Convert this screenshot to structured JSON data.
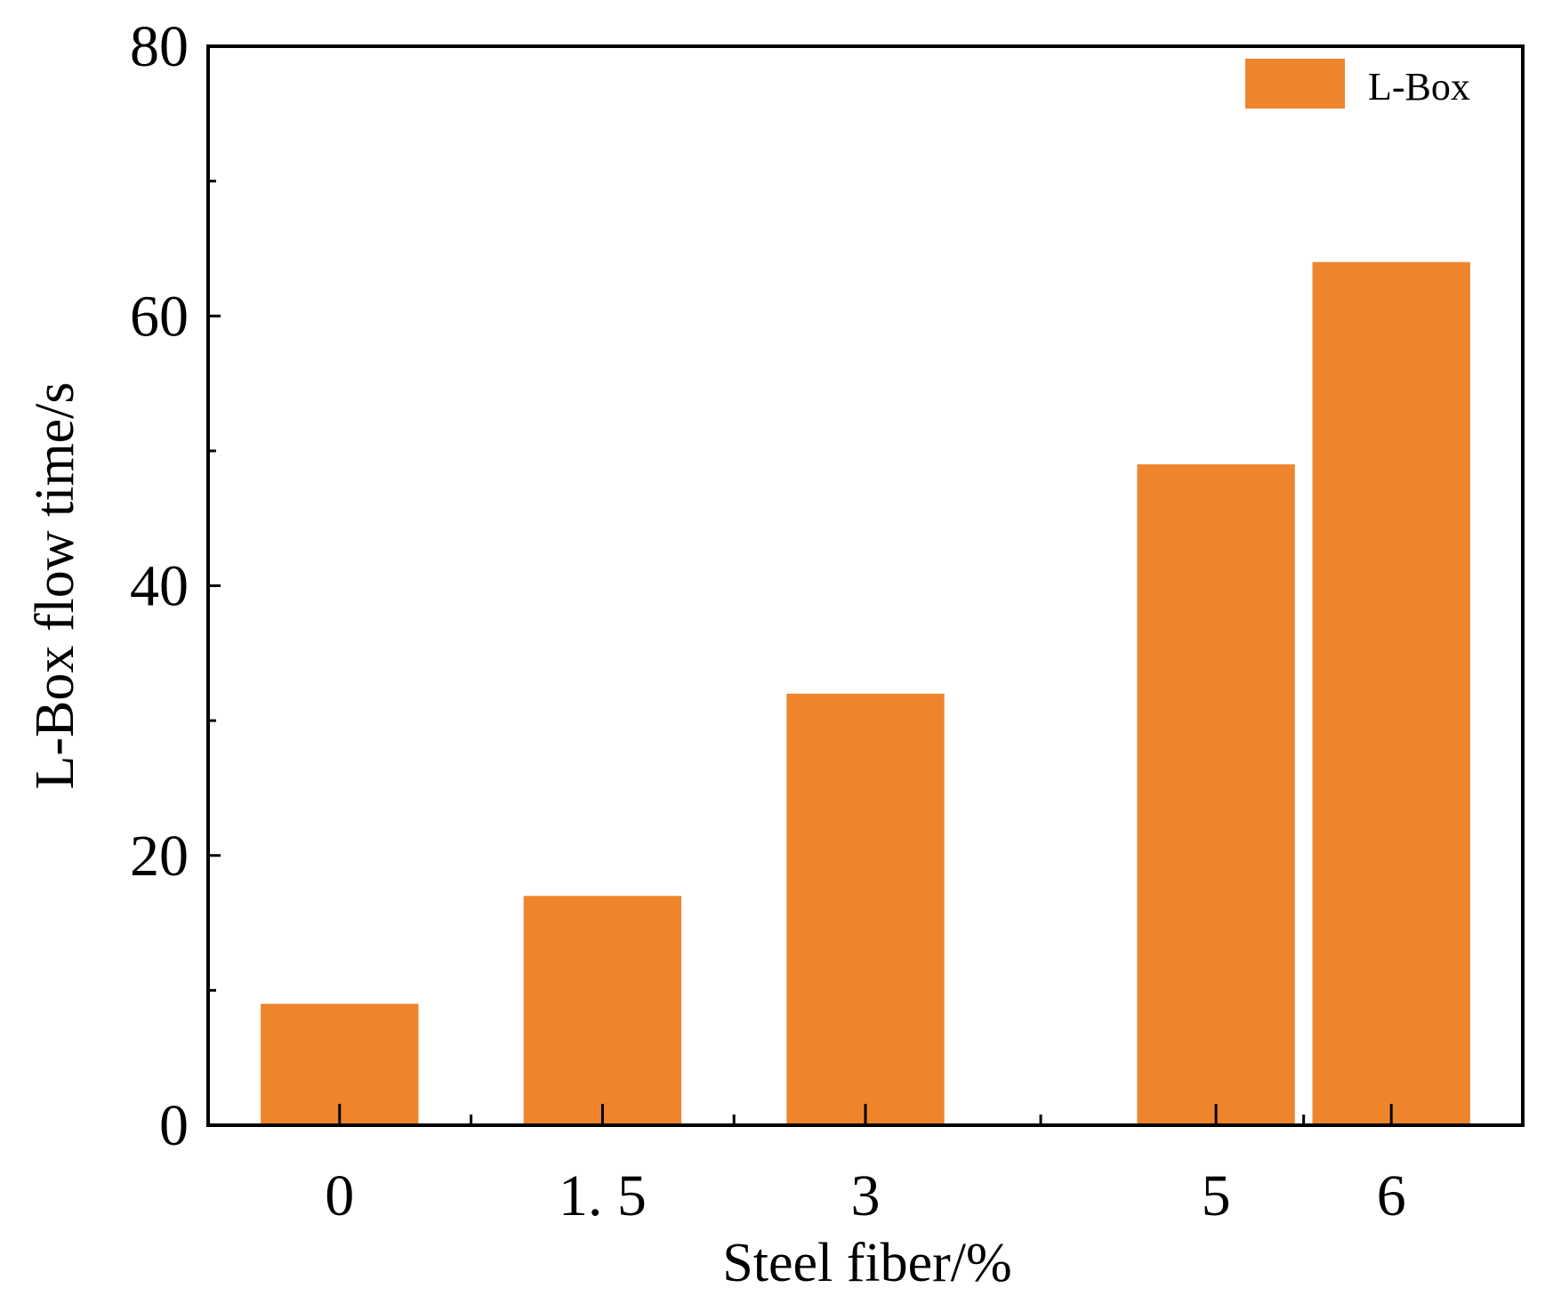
{
  "chart_data": {
    "type": "bar",
    "title": "",
    "xlabel": "Steel fiber/%",
    "ylabel": "L-Box flow time/s",
    "x": [
      0,
      1.5,
      3,
      5,
      6
    ],
    "x_tick_labels": [
      "0",
      "1. 5",
      "3",
      "5",
      "6"
    ],
    "xlim": [
      -0.75,
      6.75
    ],
    "ylim": [
      0,
      80
    ],
    "y_ticks": [
      0,
      20,
      40,
      60,
      80
    ],
    "y_tick_labels": [
      "0",
      "20",
      "40",
      "60",
      "80"
    ],
    "series": [
      {
        "name": "L-Box",
        "values": [
          9,
          17,
          32,
          49,
          64
        ]
      }
    ],
    "bar_width": 0.9,
    "color": "#ee852c",
    "legend": "top-right",
    "grid": false
  }
}
